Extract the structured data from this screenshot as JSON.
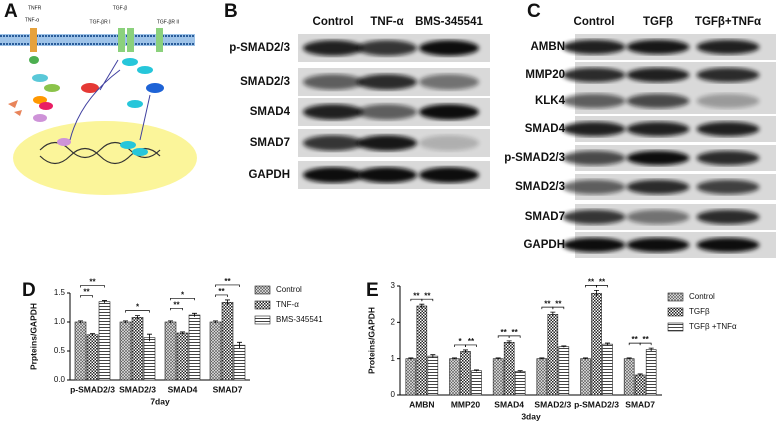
{
  "panel_letters": [
    "A",
    "B",
    "C",
    "D",
    "E"
  ],
  "diagram": {
    "labels": [
      "TNFR",
      "TNF-α",
      "TGF-β",
      "TGF-βR I",
      "TGF-βR II"
    ]
  },
  "blot_B": {
    "columns": [
      "Control",
      "TNF-α",
      "BMS-345541"
    ],
    "rows": [
      "p-SMAD2/3",
      "SMAD2/3",
      "SMAD4",
      "SMAD7",
      "GAPDH"
    ]
  },
  "blot_C": {
    "columns": [
      "Control",
      "TGFβ",
      "TGFβ+TNFα"
    ],
    "rows": [
      "AMBN",
      "MMP20",
      "KLK4",
      "SMAD4",
      "p-SMAD2/3",
      "SMAD2/3",
      "SMAD7",
      "GAPDH"
    ]
  },
  "chart_data": [
    {
      "type": "bar",
      "ylabel": "Prpteins/GAPDH",
      "xlabel": "7day",
      "categories": [
        "p-SMAD2/3",
        "SMAD2/3",
        "SMAD4",
        "SMAD7"
      ],
      "series": [
        {
          "name": "Control",
          "color": "#555555",
          "values": [
            1.0,
            1.0,
            1.0,
            1.0
          ],
          "errors": [
            0.02,
            0.02,
            0.02,
            0.02
          ]
        },
        {
          "name": "TNF-α",
          "color": "#222222",
          "values": [
            0.78,
            1.08,
            0.81,
            1.34
          ],
          "errors": [
            0.02,
            0.03,
            0.02,
            0.04
          ]
        },
        {
          "name": "BMS-345541",
          "color": "#444444",
          "values": [
            1.35,
            0.73,
            1.12,
            0.6
          ],
          "errors": [
            0.02,
            0.06,
            0.03,
            0.05
          ]
        }
      ],
      "ylim": [
        0,
        1.5
      ],
      "yticks": [
        {
          "value": 0,
          "label": "0.0"
        },
        {
          "value": 0.5,
          "label": "0.5"
        },
        {
          "value": 1,
          "label": "1.0"
        },
        {
          "value": 1.5,
          "label": "1.5"
        }
      ],
      "annotations": [
        "**",
        "**",
        "*",
        "**",
        "*",
        "**",
        "**"
      ],
      "legend": "right"
    },
    {
      "type": "bar",
      "ylabel": "Proteins/GAPDH",
      "xlabel": "3day",
      "categories": [
        "AMBN",
        "MMP20",
        "SMAD4",
        "SMAD2/3",
        "p-SMAD2/3",
        "SMAD7"
      ],
      "series": [
        {
          "name": "Control",
          "color": "#555555",
          "values": [
            1.0,
            1.0,
            1.0,
            1.0,
            1.0,
            1.0
          ],
          "errors": [
            0.02,
            0.02,
            0.02,
            0.02,
            0.02,
            0.02
          ]
        },
        {
          "name": "TGFβ",
          "color": "#222222",
          "values": [
            2.45,
            1.2,
            1.45,
            2.22,
            2.8,
            0.55
          ],
          "errors": [
            0.05,
            0.04,
            0.04,
            0.06,
            0.08,
            0.03
          ]
        },
        {
          "name": "TGFβ +TNFα",
          "color": "#444444",
          "values": [
            1.07,
            0.67,
            0.65,
            1.33,
            1.4,
            1.25
          ],
          "errors": [
            0.04,
            0.02,
            0.02,
            0.02,
            0.03,
            0.04
          ]
        }
      ],
      "ylim": [
        0,
        3
      ],
      "yticks": [
        0,
        1,
        2,
        3
      ],
      "annotations": [
        "**",
        "**",
        "*",
        "**",
        "**",
        "**",
        "**",
        "**",
        "**",
        "**",
        "**",
        "**"
      ],
      "legend": "right"
    }
  ]
}
